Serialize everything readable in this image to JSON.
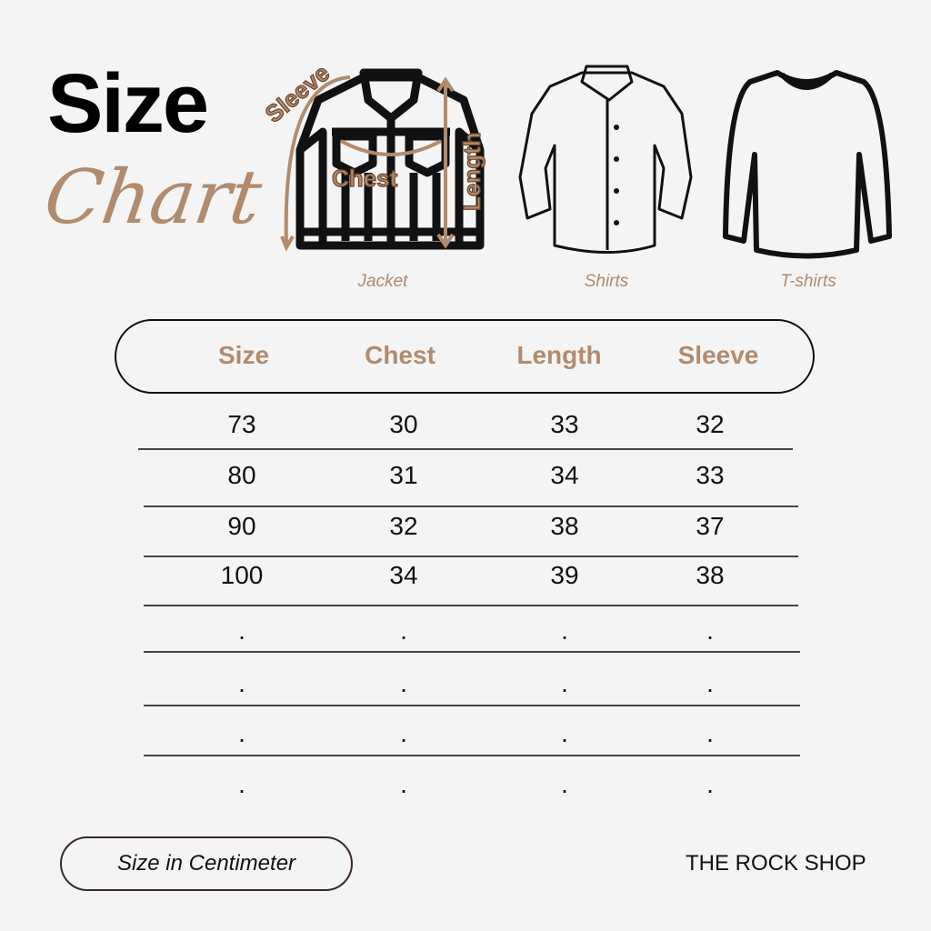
{
  "title": {
    "line1": "Size",
    "line2": "Chart"
  },
  "garments": [
    {
      "name": "Jacket",
      "labels": {
        "sleeve": "Sleeve",
        "chest": "Chest",
        "length": "Length"
      }
    },
    {
      "name": "Shirts"
    },
    {
      "name": "T-shirts"
    }
  ],
  "table": {
    "headers": [
      "Size",
      "Chest",
      "Length",
      "Sleeve"
    ],
    "rows": [
      [
        "73",
        "30",
        "33",
        "32"
      ],
      [
        "80",
        "31",
        "34",
        "33"
      ],
      [
        "90",
        "32",
        "38",
        "37"
      ],
      [
        "100",
        "34",
        "39",
        "38"
      ],
      [
        ".",
        ".",
        ".",
        "."
      ],
      [
        ".",
        ".",
        ".",
        "."
      ],
      [
        ".",
        ".",
        ".",
        "."
      ],
      [
        ".",
        ".",
        ".",
        "."
      ]
    ]
  },
  "footer": {
    "unit": "Size in Centimeter",
    "shop": "THE ROCK SHOP"
  },
  "colors": {
    "accent": "#b08b6e",
    "background": "#f4f4f4",
    "text": "#111111"
  }
}
